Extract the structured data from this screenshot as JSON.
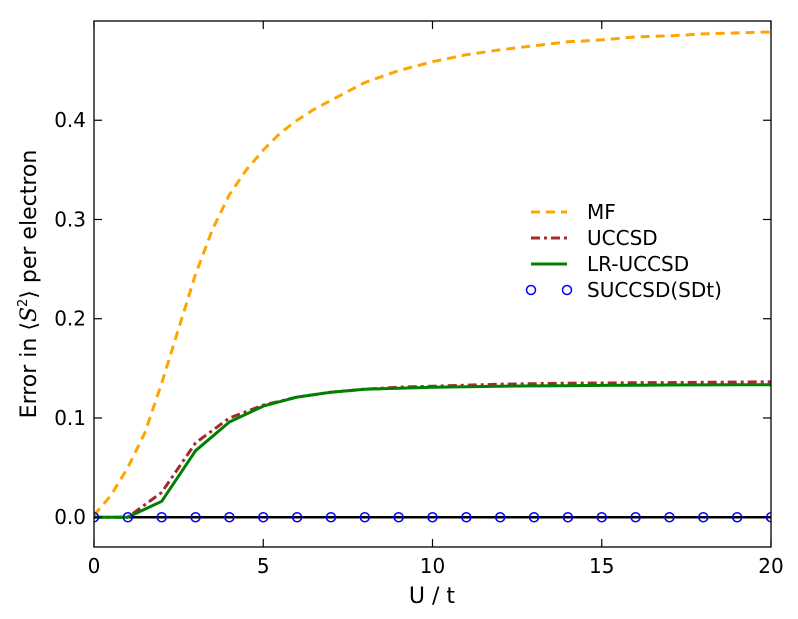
{
  "chart_data": {
    "type": "line",
    "title": "",
    "xlabel": "U / t",
    "ylabel_prefix": "Error in ",
    "ylabel_langle": "⟨",
    "ylabel_symbol": "S",
    "ylabel_sup": "2",
    "ylabel_rangle": "⟩",
    "ylabel_suffix": " per electron",
    "xlim": [
      0,
      20
    ],
    "ylim": [
      -0.03,
      0.5
    ],
    "xticks": [
      0,
      5,
      10,
      15,
      20
    ],
    "xtick_labels": [
      "0",
      "5",
      "10",
      "15",
      "20"
    ],
    "yticks": [
      0.0,
      0.1,
      0.2,
      0.3,
      0.4
    ],
    "ytick_labels": [
      "0.0",
      "0.1",
      "0.2",
      "0.3",
      "0.4"
    ],
    "grid": false,
    "legend_position": "center-right",
    "series": [
      {
        "name": "MF",
        "style": "dashed",
        "color": "#FFA500",
        "x": [
          0,
          0.5,
          1,
          1.5,
          2,
          2.5,
          3,
          3.5,
          4,
          4.5,
          5,
          5.5,
          6,
          6.5,
          7,
          8,
          9,
          10,
          11,
          12,
          13,
          14,
          15,
          16,
          17,
          18,
          19,
          20
        ],
        "y": [
          0.002,
          0.022,
          0.05,
          0.085,
          0.135,
          0.19,
          0.245,
          0.29,
          0.325,
          0.35,
          0.37,
          0.387,
          0.4,
          0.411,
          0.42,
          0.438,
          0.45,
          0.459,
          0.466,
          0.471,
          0.475,
          0.479,
          0.481,
          0.484,
          0.485,
          0.487,
          0.488,
          0.489
        ]
      },
      {
        "name": "UCCSD",
        "style": "dashdot",
        "color": "#A52A2A",
        "x": [
          0,
          1,
          2,
          3,
          4,
          5,
          6,
          7,
          8,
          9,
          10,
          11,
          12,
          13,
          14,
          15,
          16,
          17,
          18,
          19,
          20
        ],
        "y": [
          0.0,
          0.0,
          0.025,
          0.075,
          0.1,
          0.113,
          0.121,
          0.126,
          0.129,
          0.131,
          0.132,
          0.133,
          0.134,
          0.1345,
          0.135,
          0.1352,
          0.1355,
          0.1357,
          0.136,
          0.1362,
          0.1365
        ]
      },
      {
        "name": "LR-UCCSD",
        "style": "solid",
        "color": "#008000",
        "x": [
          0,
          1,
          2,
          3,
          4,
          5,
          6,
          7,
          8,
          9,
          10,
          11,
          12,
          13,
          14,
          15,
          16,
          17,
          18,
          19,
          20
        ],
        "y": [
          0.0,
          0.0,
          0.016,
          0.067,
          0.096,
          0.112,
          0.121,
          0.126,
          0.129,
          0.13,
          0.131,
          0.1315,
          0.132,
          0.1323,
          0.1325,
          0.1328,
          0.133,
          0.1332,
          0.1333,
          0.1334,
          0.1335
        ]
      },
      {
        "name": "SUCCSD(SDt)",
        "style": "markers",
        "color": "#0000FF",
        "x": [
          0,
          1,
          2,
          3,
          4,
          5,
          6,
          7,
          8,
          9,
          10,
          11,
          12,
          13,
          14,
          15,
          16,
          17,
          18,
          19,
          20
        ],
        "y": [
          0,
          0,
          0,
          0,
          0,
          0,
          0,
          0,
          0,
          0,
          0,
          0,
          0,
          0,
          0,
          0,
          0,
          0,
          0,
          0,
          0
        ]
      }
    ],
    "reference_line": {
      "y": 0,
      "color": "#000000"
    }
  }
}
